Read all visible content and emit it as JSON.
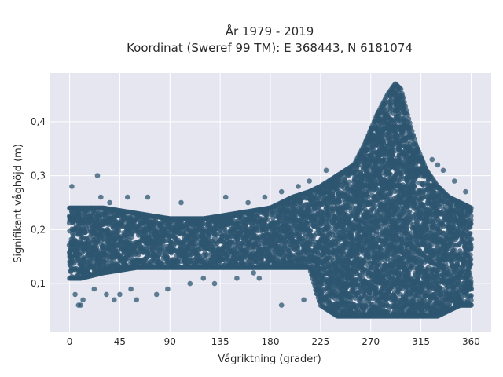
{
  "chart_data": {
    "type": "scatter",
    "title": "År 1979 - 2019",
    "subtitle": "Koordinat (Sweref 99 TM): E 368443, N 6181074",
    "xlabel": "Vågriktning (grader)",
    "ylabel": "Signifikant våghöjd (m)",
    "xlim": [
      -18,
      378
    ],
    "ylim": [
      0.01,
      0.49
    ],
    "xticks": [
      0,
      45,
      90,
      135,
      180,
      225,
      270,
      315,
      360
    ],
    "yticks": [
      0.1,
      0.2,
      0.3,
      0.4
    ],
    "ytick_labels": [
      "0,1",
      "0,2",
      "0,3",
      "0,4"
    ],
    "grid": true,
    "marker_color": "#2e5670",
    "background_color": "#e5e6f0",
    "envelope": {
      "direction": [
        0,
        10,
        30,
        60,
        90,
        120,
        150,
        180,
        200,
        215,
        225,
        240,
        255,
        265,
        275,
        285,
        292,
        297,
        302,
        310,
        320,
        330,
        340,
        350,
        360
      ],
      "hs_min": [
        0.11,
        0.11,
        0.12,
        0.13,
        0.13,
        0.13,
        0.13,
        0.13,
        0.13,
        0.13,
        0.06,
        0.04,
        0.04,
        0.04,
        0.04,
        0.04,
        0.04,
        0.04,
        0.04,
        0.04,
        0.04,
        0.04,
        0.05,
        0.06,
        0.06
      ],
      "hs_max": [
        0.24,
        0.24,
        0.24,
        0.23,
        0.22,
        0.22,
        0.23,
        0.24,
        0.26,
        0.27,
        0.28,
        0.3,
        0.32,
        0.36,
        0.41,
        0.45,
        0.47,
        0.46,
        0.42,
        0.36,
        0.31,
        0.28,
        0.26,
        0.25,
        0.24
      ]
    },
    "outliers": [
      [
        2,
        0.28
      ],
      [
        25,
        0.3
      ],
      [
        5,
        0.08
      ],
      [
        8,
        0.06
      ],
      [
        10,
        0.06
      ],
      [
        12,
        0.07
      ],
      [
        40,
        0.07
      ],
      [
        45,
        0.08
      ],
      [
        60,
        0.07
      ],
      [
        78,
        0.08
      ],
      [
        108,
        0.1
      ],
      [
        130,
        0.1
      ],
      [
        150,
        0.11
      ],
      [
        170,
        0.11
      ],
      [
        190,
        0.06
      ],
      [
        210,
        0.07
      ],
      [
        28,
        0.26
      ],
      [
        70,
        0.26
      ],
      [
        140,
        0.26
      ],
      [
        190,
        0.27
      ],
      [
        205,
        0.28
      ],
      [
        230,
        0.31
      ],
      [
        240,
        0.3
      ],
      [
        325,
        0.33
      ],
      [
        330,
        0.32
      ],
      [
        335,
        0.31
      ],
      [
        345,
        0.29
      ],
      [
        355,
        0.27
      ],
      [
        358,
        0.24
      ],
      [
        357,
        0.12
      ],
      [
        22,
        0.09
      ],
      [
        33,
        0.08
      ],
      [
        55,
        0.09
      ],
      [
        88,
        0.09
      ],
      [
        120,
        0.11
      ],
      [
        165,
        0.12
      ],
      [
        350,
        0.07
      ],
      [
        36,
        0.25
      ],
      [
        52,
        0.26
      ],
      [
        100,
        0.25
      ],
      [
        160,
        0.25
      ],
      [
        175,
        0.26
      ],
      [
        195,
        0.25
      ],
      [
        215,
        0.29
      ]
    ]
  }
}
